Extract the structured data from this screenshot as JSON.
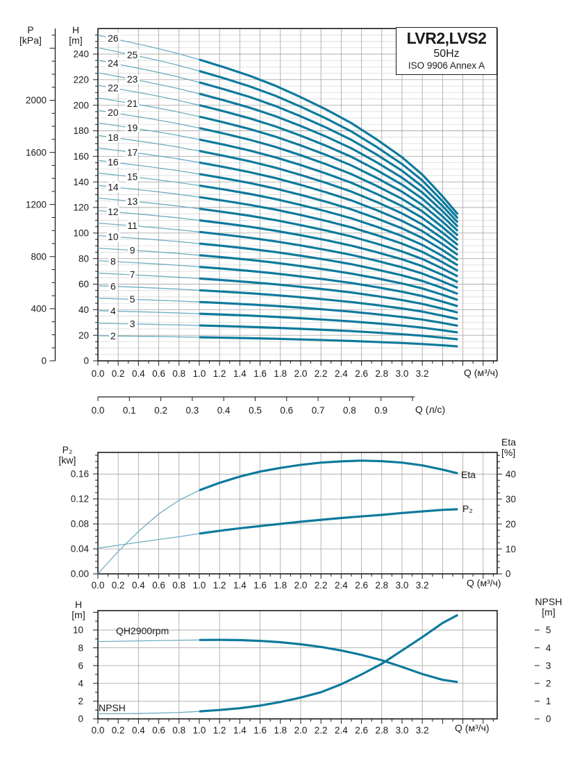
{
  "title_box": {
    "model": "LVR2,LVS2",
    "frequency": "50Hz",
    "standard": "ISO 9906 Annex A"
  },
  "labels": {
    "pressure_axis": "P",
    "pressure_unit": "[kPa]",
    "head_axis": "H",
    "head_unit": "[m]",
    "flow_m3h": "Q (м³/ч)",
    "flow_ls": "Q (л/с)",
    "power_axis": "P₂",
    "power_unit": "[kw]",
    "eta_axis": "Eta",
    "eta_unit": "[%]",
    "npsh_axis": "NPSH",
    "npsh_unit": "[m]",
    "head_axis_bottom": "H",
    "head_unit_bottom": "[m]",
    "eta_curve": "Eta",
    "p2_curve": "P₂",
    "qh_curve": "QH2900rpm",
    "npsh_curve": "NPSH"
  },
  "colors": {
    "curve_thick": "#0e7a9c",
    "curve_thin": "#6fadc2",
    "grid": "#ababab",
    "grid_minor": "#d9d9d9",
    "frame": "#1a1a1a",
    "text": "#1a1a1a"
  },
  "chart_data": [
    {
      "type": "line",
      "name": "multistage QH curves, stages 2-26",
      "x_axis": {
        "label": "Q (м³/ч)",
        "range": [
          0,
          3.94
        ],
        "tick_minor_step": 0.1,
        "tick_major_step": 0.2,
        "tick_labels": [
          "0.0",
          "0.2",
          "0.4",
          "0.6",
          "0.8",
          "1.0",
          "1.2",
          "1.4",
          "1.6",
          "1.8",
          "2.0",
          "2.2",
          "2.4",
          "2.6",
          "2.8",
          "3.0",
          "3.2"
        ]
      },
      "x_axis_secondary": {
        "label": "Q (л/с)",
        "range": [
          0,
          1.0
        ],
        "tick_step": 0.1,
        "tick_labels": [
          "0.0",
          "0.1",
          "0.2",
          "0.3",
          "0.4",
          "0.5",
          "0.6",
          "0.7",
          "0.8",
          "0.9"
        ]
      },
      "y_axis_pressure": {
        "label": "P [kPa]",
        "range": [
          0,
          2550
        ],
        "minor_step": 100,
        "major_step": 400,
        "tick_labels": [
          "0",
          "400",
          "800",
          "1200",
          "1600",
          "2000"
        ]
      },
      "y_axis_head": {
        "label": "H [m]",
        "range": [
          0,
          260
        ],
        "minor_step": 5,
        "major_step": 20,
        "tick_labels": [
          "0",
          "20",
          "40",
          "60",
          "80",
          "100",
          "120",
          "140",
          "160",
          "180",
          "200",
          "220",
          "240"
        ]
      },
      "stages": [
        2,
        3,
        4,
        5,
        6,
        7,
        8,
        9,
        10,
        11,
        12,
        13,
        14,
        15,
        16,
        17,
        18,
        19,
        20,
        21,
        22,
        23,
        24,
        25,
        26
      ],
      "head_per_stage_m": 9.8,
      "profile_q": [
        0,
        0.25,
        0.5,
        0.75,
        1.0,
        1.25,
        1.5,
        1.75,
        2.0,
        2.25,
        2.5,
        2.75,
        3.0,
        3.2,
        3.4,
        3.55
      ],
      "profile_factor": [
        1,
        0.983,
        0.966,
        0.947,
        0.925,
        0.901,
        0.875,
        0.845,
        0.81,
        0.772,
        0.73,
        0.68,
        0.625,
        0.572,
        0.505,
        0.45
      ],
      "stage_flatten_base": 0.75,
      "thick_from_q": 1.0,
      "curve_end_q": 3.55,
      "label_q_even": 0.15,
      "label_q_odd": 0.34
    },
    {
      "type": "line",
      "name": "power P2 and efficiency Eta vs flow",
      "x_axis": {
        "label": "Q (м³/ч)",
        "range": [
          0,
          3.94
        ],
        "tick_minor_step": 0.1,
        "tick_major_step": 0.2,
        "tick_labels": [
          "0.0",
          "0.2",
          "0.4",
          "0.6",
          "0.8",
          "1.0",
          "1.2",
          "1.4",
          "1.6",
          "1.8",
          "2.0",
          "2.2",
          "2.4",
          "2.6",
          "2.8",
          "3.0",
          "3.2"
        ]
      },
      "y_axis_power": {
        "label": "P₂ [kw]",
        "range": [
          0,
          0.1944
        ],
        "minor_step": 0.01,
        "major_step": 0.04,
        "tick_labels": [
          "0.00",
          "0.04",
          "0.08",
          "0.12",
          "0.16"
        ]
      },
      "y_axis_eta": {
        "label": "Eta [%]",
        "range": [
          0,
          48.6
        ],
        "minor_step": 2.5,
        "major_step": 10,
        "tick_labels": [
          "0",
          "10",
          "20",
          "30",
          "40"
        ]
      },
      "thick_from_q": 1.0,
      "series": [
        {
          "name": "Eta",
          "axis": "eta",
          "points": [
            [
              0,
              0
            ],
            [
              0.2,
              9
            ],
            [
              0.4,
              17
            ],
            [
              0.6,
              24
            ],
            [
              0.8,
              29.5
            ],
            [
              1.0,
              33.5
            ],
            [
              1.2,
              36.5
            ],
            [
              1.4,
              39
            ],
            [
              1.6,
              41
            ],
            [
              1.8,
              42.5
            ],
            [
              2.0,
              43.7
            ],
            [
              2.2,
              44.6
            ],
            [
              2.4,
              45.1
            ],
            [
              2.6,
              45.4
            ],
            [
              2.8,
              45.2
            ],
            [
              3.0,
              44.6
            ],
            [
              3.2,
              43.5
            ],
            [
              3.4,
              41.8
            ],
            [
              3.55,
              40.3
            ]
          ]
        },
        {
          "name": "P₂",
          "axis": "power",
          "points": [
            [
              0,
              0.041
            ],
            [
              0.4,
              0.0505
            ],
            [
              0.8,
              0.0595
            ],
            [
              1.0,
              0.0645
            ],
            [
              1.2,
              0.069
            ],
            [
              1.4,
              0.073
            ],
            [
              1.6,
              0.0765
            ],
            [
              1.8,
              0.08
            ],
            [
              2.0,
              0.0835
            ],
            [
              2.2,
              0.0865
            ],
            [
              2.4,
              0.0895
            ],
            [
              2.6,
              0.092
            ],
            [
              2.8,
              0.0945
            ],
            [
              3.0,
              0.0975
            ],
            [
              3.2,
              0.1
            ],
            [
              3.4,
              0.1025
            ],
            [
              3.55,
              0.1035
            ]
          ]
        }
      ]
    },
    {
      "type": "line",
      "name": "single stage QH at 2900 rpm and NPSH vs flow",
      "x_axis": {
        "label": "Q (м³/ч)",
        "range": [
          0,
          3.94
        ],
        "tick_minor_step": 0.1,
        "tick_major_step": 0.2,
        "tick_labels": [
          "0.0",
          "0.2",
          "0.4",
          "0.6",
          "0.8",
          "1.0",
          "1.2",
          "1.4",
          "1.6",
          "1.8",
          "2.0",
          "2.2",
          "2.4",
          "2.6",
          "2.8",
          "3.0",
          "3.2"
        ]
      },
      "y_axis_head": {
        "label": "H [m]",
        "range": [
          0,
          12.2
        ],
        "minor_step": 1,
        "major_step": 2,
        "tick_labels": [
          "0",
          "2",
          "4",
          "6",
          "8",
          "10"
        ]
      },
      "y_axis_npsh": {
        "label": "NPSH [m]",
        "range": [
          0,
          6.1
        ],
        "major_step": 1,
        "tick_labels": [
          "0",
          "1",
          "2",
          "3",
          "4",
          "5"
        ]
      },
      "thick_from_q": 1.0,
      "series": [
        {
          "name": "QH2900rpm",
          "axis": "head",
          "points": [
            [
              0,
              8.7
            ],
            [
              0.4,
              8.78
            ],
            [
              0.8,
              8.85
            ],
            [
              1.0,
              8.88
            ],
            [
              1.2,
              8.9
            ],
            [
              1.4,
              8.87
            ],
            [
              1.6,
              8.78
            ],
            [
              1.8,
              8.63
            ],
            [
              2.0,
              8.4
            ],
            [
              2.2,
              8.1
            ],
            [
              2.4,
              7.7
            ],
            [
              2.6,
              7.2
            ],
            [
              2.8,
              6.6
            ],
            [
              3.0,
              5.85
            ],
            [
              3.2,
              5.05
            ],
            [
              3.4,
              4.4
            ],
            [
              3.55,
              4.15
            ]
          ]
        },
        {
          "name": "NPSH",
          "axis": "npsh",
          "points": [
            [
              0,
              0.29
            ],
            [
              0.4,
              0.3
            ],
            [
              0.8,
              0.36
            ],
            [
              1.0,
              0.42
            ],
            [
              1.2,
              0.5
            ],
            [
              1.4,
              0.6
            ],
            [
              1.6,
              0.75
            ],
            [
              1.8,
              0.95
            ],
            [
              2.0,
              1.2
            ],
            [
              2.2,
              1.5
            ],
            [
              2.4,
              1.95
            ],
            [
              2.6,
              2.5
            ],
            [
              2.8,
              3.1
            ],
            [
              3.0,
              3.85
            ],
            [
              3.2,
              4.6
            ],
            [
              3.4,
              5.4
            ],
            [
              3.55,
              5.85
            ]
          ]
        }
      ]
    }
  ]
}
